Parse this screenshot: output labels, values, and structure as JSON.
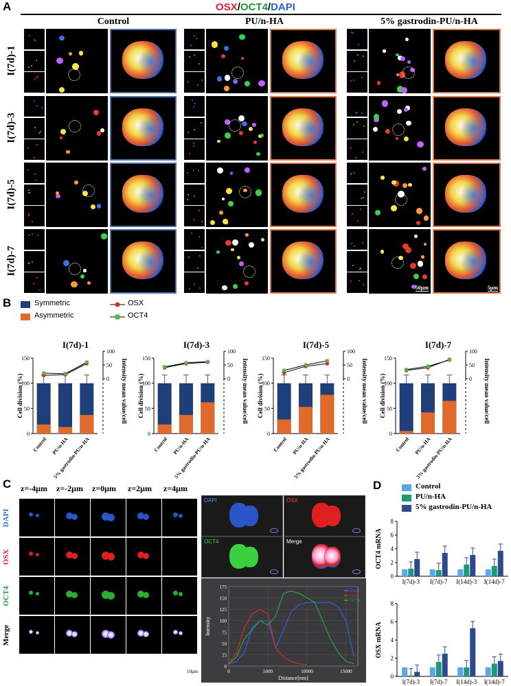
{
  "figure": {
    "panel_a": {
      "letter": "A",
      "header_parts": [
        {
          "text": "OSX",
          "color": "#e0202a"
        },
        {
          "text": "/",
          "color": "#000000"
        },
        {
          "text": "OCT4",
          "color": "#1a9a3a"
        },
        {
          "text": "/",
          "color": "#000000"
        },
        {
          "text": "DAPI",
          "color": "#2a5fd0"
        }
      ],
      "columns": [
        "Control",
        "PU/n-HA",
        "5% gastrodin-PU/n-HA"
      ],
      "rows": [
        "I(7d)-1",
        "I(7d)-3",
        "I(7d)-5",
        "I(7d)-7"
      ],
      "scale_50": "50μm",
      "scale_5": "5μm"
    },
    "panel_b": {
      "letter": "B",
      "legend": {
        "symmetric": "Symmetric",
        "asymmetric": "Asymmetric",
        "osx": "OSX",
        "oct4": "OCT4"
      },
      "colors": {
        "symmetric": "#1f3f7a",
        "asymmetric": "#e06a2c",
        "osx": "#d42a2a",
        "oct4": "#5ab24a"
      },
      "ylabel_left": "Cell division (%)",
      "ylabel_right": "Intensity mean value/cell"
    },
    "panel_c": {
      "letter": "C",
      "z_labels": [
        "z=-4μm",
        "z=-2μm",
        "z=0μm",
        "z=2μm",
        "z=4μm"
      ],
      "row_labels": [
        "DAPI",
        "OSX",
        "OCT4",
        "Merge"
      ],
      "row_colors": [
        "#2a6fe0",
        "#e0202a",
        "#1aa33a",
        "#000000"
      ],
      "views": [
        "DAPI",
        "OSX",
        "OCT4",
        "Merge"
      ],
      "scale": "10μm"
    },
    "panel_d": {
      "letter": "D",
      "legend": [
        "Control",
        "PU/n-HA",
        "5% gastrodin-PU/n-HA"
      ],
      "colors": [
        "#5aa9e6",
        "#1e9a7a",
        "#2e4a8c"
      ]
    }
  },
  "chart_data": [
    {
      "type": "bar",
      "title": "I(7d)-1",
      "categories": [
        "Control",
        "PU/n-HA",
        "5% gastrodin-PU/n-HA"
      ],
      "series": [
        {
          "name": "Symmetric",
          "values": [
            100,
            100,
            100
          ]
        },
        {
          "name": "Asymmetric",
          "values": [
            18,
            13,
            37
          ]
        },
        {
          "name": "OSX",
          "values": [
            12,
            15,
            55
          ]
        },
        {
          "name": "OCT4",
          "values": [
            20,
            18,
            60
          ]
        }
      ],
      "ylim": [
        0,
        150
      ],
      "y2ticks": [
        0,
        50,
        100
      ]
    },
    {
      "type": "bar",
      "title": "I(7d)-3",
      "categories": [
        "Control",
        "PU/n-HA",
        "5% gastrodin-PU/n-HA"
      ],
      "series": [
        {
          "name": "Symmetric",
          "values": [
            100,
            100,
            100
          ]
        },
        {
          "name": "Asymmetric",
          "values": [
            18,
            37,
            62
          ]
        },
        {
          "name": "OSX",
          "values": [
            40,
            55,
            60
          ]
        },
        {
          "name": "OCT4",
          "values": [
            43,
            58,
            62
          ]
        }
      ],
      "ylim": [
        0,
        150
      ],
      "y2ticks": [
        0,
        50,
        100
      ]
    },
    {
      "type": "bar",
      "title": "I(7d)-5",
      "categories": [
        "Control",
        "PU/n-HA",
        "5% gastrodin-PU/n-HA"
      ],
      "series": [
        {
          "name": "Symmetric",
          "values": [
            100,
            100,
            100
          ]
        },
        {
          "name": "Asymmetric",
          "values": [
            28,
            53,
            77
          ]
        },
        {
          "name": "OSX",
          "values": [
            22,
            45,
            55
          ]
        },
        {
          "name": "OCT4",
          "values": [
            30,
            50,
            65
          ]
        }
      ],
      "ylim": [
        0,
        150
      ],
      "y2ticks": [
        0,
        50,
        100
      ]
    },
    {
      "type": "bar",
      "title": "I(7d)-7",
      "categories": [
        "Control",
        "PU/n-HA",
        "5% gastrodin-PU/n-HA"
      ],
      "series": [
        {
          "name": "Symmetric",
          "values": [
            100,
            100,
            100
          ]
        },
        {
          "name": "Asymmetric",
          "values": [
            5,
            42,
            65
          ]
        },
        {
          "name": "OSX",
          "values": [
            30,
            40,
            70
          ]
        },
        {
          "name": "OCT4",
          "values": [
            33,
            45,
            68
          ]
        }
      ],
      "ylim": [
        0,
        150
      ],
      "y2ticks": [
        0,
        50,
        100
      ]
    },
    {
      "type": "line",
      "xlabel": "Distance[nm]",
      "ylabel": "Intensity",
      "xticks": [
        0,
        5000,
        10000,
        15000
      ],
      "yticks": [
        0,
        25,
        50,
        75,
        100,
        125,
        150,
        175
      ],
      "ylim": [
        0,
        175
      ],
      "xlim": [
        0,
        16500
      ],
      "series": [
        {
          "name": "DAPI",
          "color": "#3a5ae0",
          "x": [
            0,
            1000,
            2000,
            3000,
            4000,
            5000,
            6000,
            7000,
            8000,
            9000,
            10000,
            11000,
            12000,
            13000,
            14000,
            15000,
            16000
          ],
          "y": [
            5,
            10,
            30,
            85,
            100,
            100,
            40,
            80,
            120,
            135,
            140,
            140,
            140,
            140,
            130,
            100,
            20
          ]
        },
        {
          "name": "OSX",
          "color": "#d42a2a",
          "x": [
            0,
            1000,
            2000,
            3000,
            4000,
            5000,
            6000,
            7000,
            8000,
            9000,
            10000
          ],
          "y": [
            5,
            30,
            85,
            115,
            125,
            115,
            40,
            20,
            10,
            5,
            3
          ]
        },
        {
          "name": "OCT4",
          "color": "#2aa33a",
          "x": [
            0,
            1000,
            2000,
            3000,
            4000,
            5000,
            6000,
            7000,
            8000,
            9000,
            10000,
            11000,
            12000,
            13000,
            14000,
            15000,
            16000
          ],
          "y": [
            5,
            20,
            60,
            80,
            100,
            90,
            110,
            160,
            165,
            160,
            150,
            140,
            100,
            60,
            30,
            10,
            5
          ]
        }
      ]
    },
    {
      "type": "bar",
      "ylabel": "OCT4 mRNA",
      "categories": [
        "I(7d)-3",
        "I(7d)-7",
        "I(14d)-3",
        "I(14d)-7"
      ],
      "series": [
        {
          "name": "Control",
          "values": [
            1,
            1,
            1,
            1
          ]
        },
        {
          "name": "PU/n-HA",
          "values": [
            1.1,
            0.9,
            1.7,
            1.5
          ]
        },
        {
          "name": "5% gastrodin-PU/n-HA",
          "values": [
            2.5,
            3.4,
            3.1,
            3.7
          ]
        }
      ],
      "ylim": [
        0,
        8
      ],
      "yticks": [
        0,
        2,
        4,
        6,
        8
      ]
    },
    {
      "type": "bar",
      "ylabel": "OSX mRNA",
      "categories": [
        "I(7d)-3",
        "I(7d)-7",
        "I(14d)-3",
        "I(14d)-7"
      ],
      "series": [
        {
          "name": "Control",
          "values": [
            1,
            1,
            1,
            1
          ]
        },
        {
          "name": "PU/n-HA",
          "values": [
            0.1,
            1.6,
            1.0,
            1.4
          ]
        },
        {
          "name": "5% gastrodin-PU/n-HA",
          "values": [
            0.5,
            2.5,
            5.3,
            1.7
          ]
        }
      ],
      "ylim": [
        0,
        8
      ],
      "yticks": [
        0,
        2,
        4,
        6,
        8
      ]
    }
  ]
}
